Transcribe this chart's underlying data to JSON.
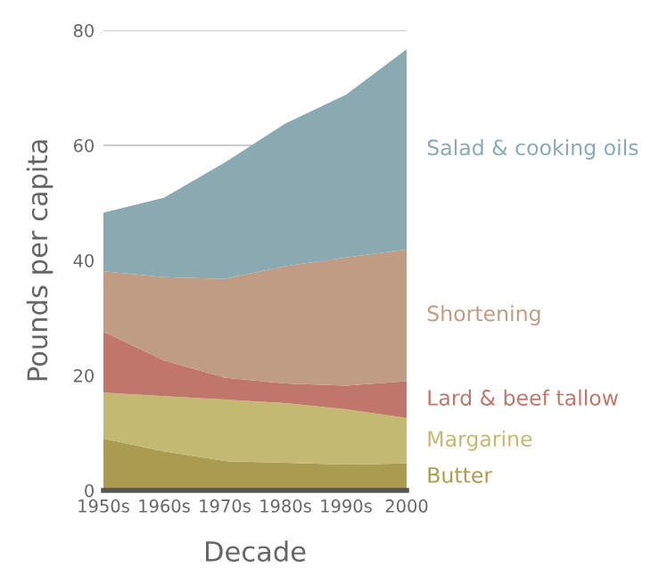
{
  "chart_data": {
    "type": "area",
    "stacked": true,
    "xlabel": "Decade",
    "ylabel": "Pounds per capita",
    "categories": [
      "1950s",
      "1960s",
      "1970s",
      "1980s",
      "1990s",
      "2000"
    ],
    "ylim": [
      0,
      80
    ],
    "yticks": [
      0,
      20,
      40,
      60,
      80
    ],
    "grid": "y",
    "legend": false,
    "series": [
      {
        "name": "Butter",
        "color": "#a99b50",
        "values": [
          9.0,
          6.8,
          5.1,
          4.8,
          4.5,
          4.7
        ]
      },
      {
        "name": "Margarine",
        "color": "#c4b973",
        "values": [
          8.0,
          9.6,
          10.7,
          10.4,
          9.6,
          7.9
        ]
      },
      {
        "name": "Lard & beef tallow",
        "color": "#c0766b",
        "values": [
          10.6,
          6.2,
          3.8,
          3.4,
          4.1,
          6.4
        ]
      },
      {
        "name": "Shortening",
        "color": "#c19c85",
        "values": [
          10.5,
          14.5,
          17.2,
          20.4,
          22.3,
          22.9
        ]
      },
      {
        "name": "Salad & cooking oils",
        "color": "#88aab0",
        "values": [
          10.2,
          13.8,
          20.2,
          24.8,
          28.3,
          34.8
        ]
      }
    ]
  }
}
